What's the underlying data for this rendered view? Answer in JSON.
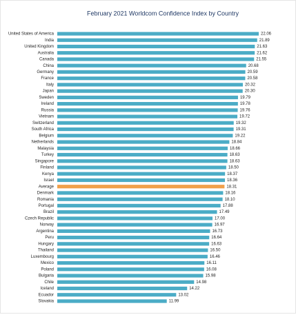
{
  "chart_data": {
    "type": "barh",
    "title": "February 2021 Worldcom Confidence Index by Country",
    "categories": [
      "United States of America",
      "India",
      "United Kingdom",
      "Australia",
      "Canada",
      "China",
      "Germany",
      "France",
      "Italy",
      "Japan",
      "Sweden",
      "Ireland",
      "Russia",
      "Vietnam",
      "Switzerland",
      "South Africa",
      "Belgium",
      "Netherlands",
      "Malaysia",
      "Turkey",
      "Singapore",
      "Finland",
      "Kenya",
      "Israel",
      "Average",
      "Denmark",
      "Romania",
      "Portugal",
      "Brazil",
      "Czech Republic",
      "Norway",
      "Argentina",
      "Peru",
      "Hungary",
      "Thailand",
      "Luxembourg",
      "Mexico",
      "Poland",
      "Bulgaria",
      "Chile",
      "Iceland",
      "Ecuador",
      "Slovakia"
    ],
    "values": [
      22.06,
      21.89,
      21.63,
      21.62,
      21.55,
      20.68,
      20.59,
      20.58,
      20.32,
      20.3,
      19.79,
      19.78,
      19.76,
      19.72,
      19.32,
      19.31,
      19.22,
      18.84,
      18.66,
      18.63,
      18.63,
      18.5,
      18.37,
      18.36,
      18.31,
      18.16,
      18.1,
      17.88,
      17.49,
      17,
      16.97,
      16.73,
      16.64,
      16.63,
      16.5,
      16.46,
      16.11,
      16.08,
      15.98,
      14.98,
      14.22,
      13.02,
      11.99
    ],
    "value_labels": [
      "22.06",
      "21.89",
      "21.63",
      "21.62",
      "21.55",
      "20.68",
      "20.59",
      "20.58",
      "20.32",
      "20.30",
      "19.79",
      "19.78",
      "19.76",
      "19.72",
      "19.32",
      "19.31",
      "19.22",
      "18.84",
      "18.66",
      "18.63",
      "18.63",
      "18.50",
      "18.37",
      "18.36",
      "18.31",
      "18.16",
      "18.10",
      "17.88",
      "17.49",
      "17.00",
      "16.97",
      "16.73",
      "16.64",
      "16.63",
      "16.50",
      "16.46",
      "16.11",
      "16.08",
      "15.98",
      "14.98",
      "14.22",
      "13.02",
      "11.99"
    ],
    "colors": [
      "#4bacc6",
      "#4bacc6",
      "#4bacc6",
      "#4bacc6",
      "#4bacc6",
      "#4bacc6",
      "#4bacc6",
      "#4bacc6",
      "#4bacc6",
      "#4bacc6",
      "#4bacc6",
      "#4bacc6",
      "#4bacc6",
      "#4bacc6",
      "#4bacc6",
      "#4bacc6",
      "#4bacc6",
      "#4bacc6",
      "#4bacc6",
      "#4bacc6",
      "#4bacc6",
      "#4bacc6",
      "#4bacc6",
      "#4bacc6",
      "#f0a04b",
      "#4bacc6",
      "#4bacc6",
      "#4bacc6",
      "#4bacc6",
      "#4bacc6",
      "#4bacc6",
      "#4bacc6",
      "#4bacc6",
      "#4bacc6",
      "#4bacc6",
      "#4bacc6",
      "#4bacc6",
      "#4bacc6",
      "#4bacc6",
      "#4bacc6",
      "#4bacc6",
      "#4bacc6",
      "#4bacc6"
    ]
  }
}
